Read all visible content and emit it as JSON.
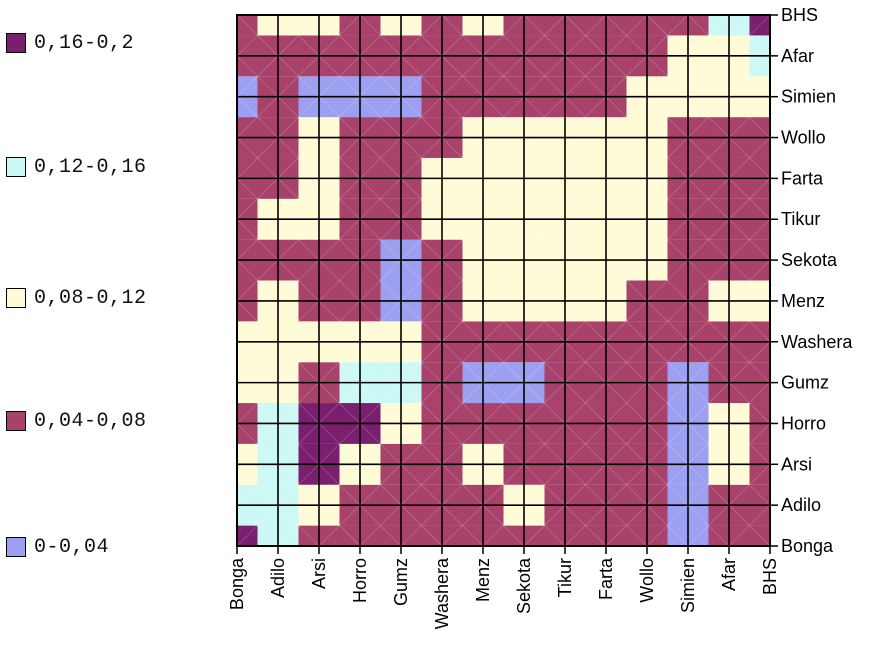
{
  "legend": [
    {
      "label": "0,16-0,2",
      "color": "#7a1e6e"
    },
    {
      "label": "0,12-0,16",
      "color": "#ccf8f6"
    },
    {
      "label": "0,08-0,12",
      "color": "#fefbd6"
    },
    {
      "label": "0,04-0,08",
      "color": "#a8426b"
    },
    {
      "label": "0-0,04",
      "color": "#9d9ff0"
    }
  ],
  "chart_data": {
    "type": "heatmap",
    "title": "",
    "xlabel": "",
    "ylabel": "",
    "x_categories": [
      "Bonga",
      "Adilo",
      "Arsi",
      "Horro",
      "Gumz",
      "Washera",
      "Menz",
      "Sekota",
      "Tikur",
      "Farta",
      "Wollo",
      "Simien",
      "Afar",
      "BHS"
    ],
    "y_categories": [
      "Bonga",
      "Adilo",
      "Arsi",
      "Horro",
      "Gumz",
      "Washera",
      "Menz",
      "Sekota",
      "Tikur",
      "Farta",
      "Wollo",
      "Simien",
      "Afar",
      "BHS"
    ],
    "range_legend": [
      "0-0,04",
      "0,04-0,08",
      "0,08-0,12",
      "0,12-0,16",
      "0,16-0,2"
    ],
    "grid": true,
    "legend_position": "left",
    "values": [
      [
        0.17,
        0.13,
        0.06,
        0.06,
        0.06,
        0.06,
        0.06,
        0.06,
        0.06,
        0.06,
        0.06,
        0.02,
        0.06,
        0.06
      ],
      [
        0.13,
        0.13,
        0.1,
        0.06,
        0.06,
        0.06,
        0.06,
        0.1,
        0.06,
        0.06,
        0.06,
        0.02,
        0.06,
        0.06
      ],
      [
        0.1,
        0.14,
        0.16,
        0.1,
        0.06,
        0.06,
        0.1,
        0.06,
        0.06,
        0.06,
        0.06,
        0.02,
        0.1,
        0.06
      ],
      [
        0.06,
        0.14,
        0.16,
        0.16,
        0.1,
        0.06,
        0.06,
        0.06,
        0.06,
        0.06,
        0.06,
        0.02,
        0.1,
        0.06
      ],
      [
        0.1,
        0.1,
        0.06,
        0.14,
        0.15,
        0.06,
        0.02,
        0.03,
        0.06,
        0.06,
        0.06,
        0.02,
        0.06,
        0.06
      ],
      [
        0.1,
        0.1,
        0.1,
        0.1,
        0.1,
        0.06,
        0.06,
        0.06,
        0.06,
        0.06,
        0.06,
        0.06,
        0.06,
        0.06
      ],
      [
        0.06,
        0.1,
        0.06,
        0.06,
        0.03,
        0.06,
        0.1,
        0.1,
        0.1,
        0.1,
        0.06,
        0.06,
        0.1,
        0.1
      ],
      [
        0.06,
        0.06,
        0.06,
        0.06,
        0.02,
        0.06,
        0.1,
        0.1,
        0.1,
        0.1,
        0.1,
        0.06,
        0.06,
        0.06
      ],
      [
        0.06,
        0.1,
        0.1,
        0.06,
        0.06,
        0.1,
        0.1,
        0.1,
        0.1,
        0.1,
        0.1,
        0.06,
        0.06,
        0.06
      ],
      [
        0.06,
        0.06,
        0.1,
        0.06,
        0.06,
        0.1,
        0.1,
        0.1,
        0.1,
        0.1,
        0.1,
        0.06,
        0.06,
        0.06
      ],
      [
        0.06,
        0.06,
        0.1,
        0.06,
        0.06,
        0.06,
        0.1,
        0.1,
        0.1,
        0.1,
        0.1,
        0.06,
        0.06,
        0.06
      ],
      [
        0.03,
        0.06,
        0.02,
        0.02,
        0.03,
        0.06,
        0.06,
        0.06,
        0.06,
        0.06,
        0.1,
        0.1,
        0.1,
        0.1
      ],
      [
        0.06,
        0.06,
        0.06,
        0.06,
        0.06,
        0.06,
        0.06,
        0.06,
        0.06,
        0.06,
        0.06,
        0.1,
        0.1,
        0.14
      ],
      [
        0.06,
        0.1,
        0.1,
        0.06,
        0.1,
        0.06,
        0.1,
        0.06,
        0.06,
        0.06,
        0.06,
        0.06,
        0.13,
        0.17
      ]
    ]
  }
}
